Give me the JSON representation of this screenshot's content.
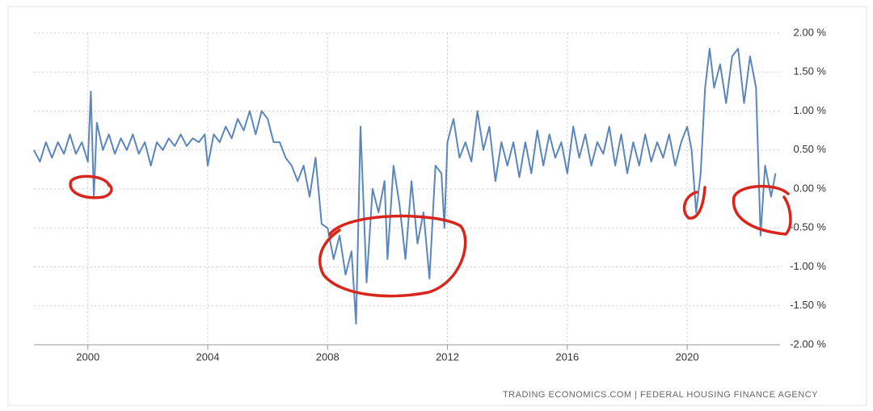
{
  "chart_data": {
    "type": "line",
    "x": [
      1998.2,
      1998.4,
      1998.6,
      1998.8,
      1999.0,
      1999.2,
      1999.4,
      1999.6,
      1999.8,
      2000.0,
      2000.1,
      2000.2,
      2000.3,
      2000.5,
      2000.7,
      2000.9,
      2001.1,
      2001.3,
      2001.5,
      2001.7,
      2001.9,
      2002.1,
      2002.3,
      2002.5,
      2002.7,
      2002.9,
      2003.1,
      2003.3,
      2003.5,
      2003.7,
      2003.9,
      2004.0,
      2004.2,
      2004.4,
      2004.6,
      2004.8,
      2005.0,
      2005.2,
      2005.4,
      2005.6,
      2005.8,
      2006.0,
      2006.2,
      2006.4,
      2006.6,
      2006.8,
      2007.0,
      2007.2,
      2007.4,
      2007.6,
      2007.8,
      2008.0,
      2008.2,
      2008.4,
      2008.6,
      2008.8,
      2008.95,
      2009.1,
      2009.3,
      2009.5,
      2009.7,
      2009.9,
      2010.0,
      2010.2,
      2010.4,
      2010.6,
      2010.8,
      2011.0,
      2011.2,
      2011.4,
      2011.6,
      2011.8,
      2011.9,
      2012.0,
      2012.2,
      2012.4,
      2012.6,
      2012.8,
      2013.0,
      2013.2,
      2013.4,
      2013.6,
      2013.8,
      2014.0,
      2014.2,
      2014.4,
      2014.6,
      2014.8,
      2015.0,
      2015.2,
      2015.4,
      2015.6,
      2015.8,
      2016.0,
      2016.2,
      2016.4,
      2016.6,
      2016.8,
      2017.0,
      2017.2,
      2017.4,
      2017.6,
      2017.8,
      2018.0,
      2018.2,
      2018.4,
      2018.6,
      2018.8,
      2019.0,
      2019.2,
      2019.4,
      2019.6,
      2019.8,
      2020.0,
      2020.15,
      2020.3,
      2020.45,
      2020.6,
      2020.75,
      2020.9,
      2021.1,
      2021.3,
      2021.5,
      2021.7,
      2021.9,
      2022.1,
      2022.3,
      2022.45,
      2022.6,
      2022.8,
      2022.95
    ],
    "values": [
      0.5,
      0.35,
      0.6,
      0.4,
      0.6,
      0.45,
      0.7,
      0.45,
      0.6,
      0.35,
      1.25,
      -0.1,
      0.85,
      0.5,
      0.7,
      0.45,
      0.65,
      0.5,
      0.7,
      0.45,
      0.6,
      0.3,
      0.6,
      0.5,
      0.65,
      0.55,
      0.7,
      0.55,
      0.65,
      0.6,
      0.7,
      0.3,
      0.7,
      0.6,
      0.8,
      0.65,
      0.9,
      0.75,
      1.0,
      0.7,
      1.0,
      0.9,
      0.6,
      0.6,
      0.4,
      0.3,
      0.1,
      0.3,
      -0.1,
      0.4,
      -0.45,
      -0.5,
      -0.9,
      -0.6,
      -1.1,
      -0.8,
      -1.73,
      0.8,
      -1.2,
      0.0,
      -0.3,
      0.1,
      -0.9,
      0.3,
      -0.2,
      -0.9,
      0.1,
      -0.7,
      -0.3,
      -1.15,
      0.3,
      0.2,
      -0.5,
      0.6,
      0.9,
      0.4,
      0.6,
      0.35,
      1.0,
      0.5,
      0.8,
      0.1,
      0.6,
      0.3,
      0.6,
      0.15,
      0.6,
      0.2,
      0.75,
      0.3,
      0.7,
      0.4,
      0.6,
      0.2,
      0.8,
      0.4,
      0.7,
      0.3,
      0.6,
      0.45,
      0.8,
      0.3,
      0.7,
      0.2,
      0.6,
      0.3,
      0.7,
      0.35,
      0.6,
      0.4,
      0.7,
      0.3,
      0.6,
      0.8,
      0.5,
      -0.3,
      0.2,
      1.3,
      1.8,
      1.3,
      1.6,
      1.1,
      1.7,
      1.8,
      1.1,
      1.7,
      1.3,
      -0.6,
      0.3,
      -0.1,
      0.2
    ],
    "color": "#5b86bb",
    "xlim": [
      1998.2,
      2023.1
    ],
    "xticks": [
      2000,
      2004,
      2008,
      2012,
      2016,
      2020
    ],
    "ylim": [
      -2,
      2
    ],
    "yticks": [
      {
        "value": 2,
        "label": "2.00 %"
      },
      {
        "value": 1.5,
        "label": "1.50 %"
      },
      {
        "value": 1,
        "label": "1.00 %"
      },
      {
        "value": 0.5,
        "label": "0.50 %"
      },
      {
        "value": 0,
        "label": "0.00 %"
      },
      {
        "value": -0.5,
        "label": "-0.50 %"
      },
      {
        "value": -1,
        "label": "-1.00 %"
      },
      {
        "value": -1.5,
        "label": "-1.50 %"
      },
      {
        "value": -2,
        "label": "-2.00 %"
      }
    ],
    "grid": true,
    "source": "TRADING ECONOMICS.COM  |  FEDERAL HOUSING FINANCE AGENCY"
  }
}
